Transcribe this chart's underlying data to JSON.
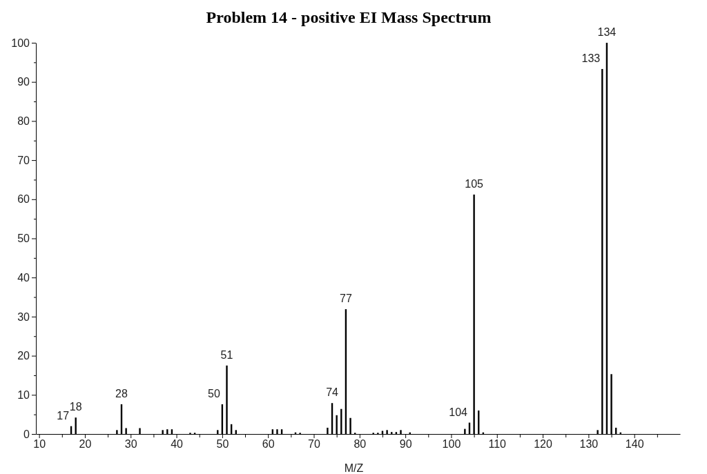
{
  "chart_data": {
    "type": "bar",
    "title": "Problem 14 - positive EI Mass Spectrum",
    "xlabel": "M/Z",
    "color": "#000000",
    "x": [
      17,
      18,
      27,
      28,
      29,
      32,
      37,
      38,
      39,
      43,
      44,
      49,
      50,
      51,
      52,
      53,
      61,
      62,
      63,
      66,
      67,
      73,
      74,
      75,
      76,
      77,
      78,
      79,
      83,
      84,
      85,
      86,
      87,
      88,
      89,
      91,
      103,
      104,
      105,
      106,
      107,
      132,
      133,
      134,
      135,
      136,
      137
    ],
    "values": [
      2,
      4.2,
      1,
      7.6,
      1.5,
      1.5,
      1,
      1.2,
      1.2,
      0.3,
      0.3,
      1,
      7.6,
      17.5,
      2.5,
      1,
      1.2,
      1.2,
      1.2,
      0.4,
      0.3,
      1.6,
      7.9,
      4.8,
      6.4,
      31.9,
      4.1,
      0.3,
      0.3,
      0.3,
      0.8,
      1,
      0.5,
      0.5,
      1,
      0.4,
      1.3,
      2.9,
      61.2,
      6,
      0.4,
      1,
      93.3,
      100,
      15.3,
      1.6,
      0.4
    ],
    "xlim": [
      9.3,
      150
    ],
    "ylim": [
      0,
      100
    ],
    "xticks": [
      10,
      {
        "value": 15,
        "label": null
      },
      20,
      {
        "value": 25,
        "label": null
      },
      30,
      {
        "value": 35,
        "label": null
      },
      40,
      {
        "value": 45,
        "label": null
      },
      50,
      {
        "value": 55,
        "label": null
      },
      60,
      {
        "value": 65,
        "label": null
      },
      70,
      {
        "value": 75,
        "label": null
      },
      80,
      {
        "value": 85,
        "label": null
      },
      90,
      {
        "value": 95,
        "label": null
      },
      100,
      {
        "value": 105,
        "label": null
      },
      110,
      {
        "value": 115,
        "label": null
      },
      120,
      {
        "value": 125,
        "label": null
      },
      130,
      {
        "value": 135,
        "label": null
      },
      140,
      {
        "value": 145,
        "label": null
      }
    ],
    "yticks": [
      0,
      {
        "value": 5,
        "label": null
      },
      10,
      {
        "value": 15,
        "label": null
      },
      20,
      {
        "value": 25,
        "label": null
      },
      30,
      {
        "value": 35,
        "label": null
      },
      40,
      {
        "value": 45,
        "label": null
      },
      50,
      {
        "value": 55,
        "label": null
      },
      60,
      {
        "value": 65,
        "label": null
      },
      70,
      {
        "value": 75,
        "label": null
      },
      80,
      {
        "value": 85,
        "label": null
      },
      90,
      {
        "value": 95,
        "label": null
      },
      100
    ],
    "grid": false,
    "annotations": [
      {
        "text": "17",
        "x": 17,
        "y": 2
      },
      {
        "text": "18",
        "x": 18,
        "y": 4.2
      },
      {
        "text": "28",
        "x": 28,
        "y": 7.6
      },
      {
        "text": "50",
        "x": 50,
        "y": 7.6
      },
      {
        "text": "51",
        "x": 51,
        "y": 17.5
      },
      {
        "text": "74",
        "x": 74,
        "y": 7.9
      },
      {
        "text": "77",
        "x": 77,
        "y": 31.9
      },
      {
        "text": "104",
        "x": 104,
        "y": 2.9
      },
      {
        "text": "105",
        "x": 105,
        "y": 61.2
      },
      {
        "text": "133",
        "x": 133,
        "y": 93.3
      },
      {
        "text": "134",
        "x": 134,
        "y": 100
      }
    ]
  }
}
